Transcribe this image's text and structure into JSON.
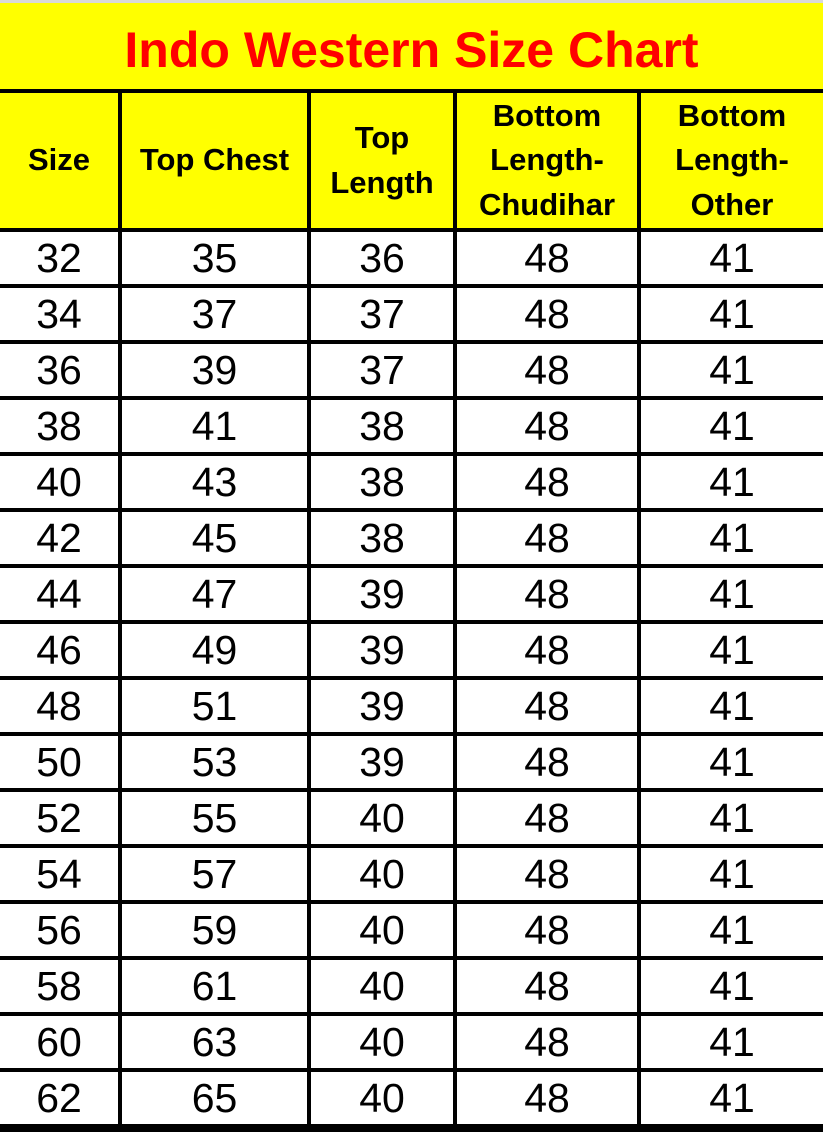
{
  "page": {
    "title": "Indo Western Size Chart"
  },
  "colors": {
    "background_yellow": "#ffff00",
    "title_red": "#ff0000",
    "grid_black": "#000000",
    "top_strip_gray": "#d9d9d9",
    "row_white": "#ffffff"
  },
  "table": {
    "headers": [
      "Size",
      "Top Chest",
      "Top\nLength",
      "Bottom\nLength-\nChudihar",
      "Bottom\nLength-\nOther"
    ],
    "rows": [
      [
        "32",
        "35",
        "36",
        "48",
        "41"
      ],
      [
        "34",
        "37",
        "37",
        "48",
        "41"
      ],
      [
        "36",
        "39",
        "37",
        "48",
        "41"
      ],
      [
        "38",
        "41",
        "38",
        "48",
        "41"
      ],
      [
        "40",
        "43",
        "38",
        "48",
        "41"
      ],
      [
        "42",
        "45",
        "38",
        "48",
        "41"
      ],
      [
        "44",
        "47",
        "39",
        "48",
        "41"
      ],
      [
        "46",
        "49",
        "39",
        "48",
        "41"
      ],
      [
        "48",
        "51",
        "39",
        "48",
        "41"
      ],
      [
        "50",
        "53",
        "39",
        "48",
        "41"
      ],
      [
        "52",
        "55",
        "40",
        "48",
        "41"
      ],
      [
        "54",
        "57",
        "40",
        "48",
        "41"
      ],
      [
        "56",
        "59",
        "40",
        "48",
        "41"
      ],
      [
        "58",
        "61",
        "40",
        "48",
        "41"
      ],
      [
        "60",
        "63",
        "40",
        "48",
        "41"
      ],
      [
        "62",
        "65",
        "40",
        "48",
        "41"
      ]
    ]
  },
  "chart_data": {
    "type": "table",
    "title": "Indo Western Size Chart",
    "columns": [
      "Size",
      "Top Chest",
      "Top Length",
      "Bottom Length-Chudihar",
      "Bottom Length-Other"
    ],
    "rows": [
      [
        32,
        35,
        36,
        48,
        41
      ],
      [
        34,
        37,
        37,
        48,
        41
      ],
      [
        36,
        39,
        37,
        48,
        41
      ],
      [
        38,
        41,
        38,
        48,
        41
      ],
      [
        40,
        43,
        38,
        48,
        41
      ],
      [
        42,
        45,
        38,
        48,
        41
      ],
      [
        44,
        47,
        39,
        48,
        41
      ],
      [
        46,
        49,
        39,
        48,
        41
      ],
      [
        48,
        51,
        39,
        48,
        41
      ],
      [
        50,
        53,
        39,
        48,
        41
      ],
      [
        52,
        55,
        40,
        48,
        41
      ],
      [
        54,
        57,
        40,
        48,
        41
      ],
      [
        56,
        59,
        40,
        48,
        41
      ],
      [
        58,
        61,
        40,
        48,
        41
      ],
      [
        60,
        63,
        40,
        48,
        41
      ],
      [
        62,
        65,
        40,
        48,
        41
      ]
    ],
    "layout_hints": {
      "title_color": "#ff0000",
      "header_background": "#ffff00",
      "grid": "on"
    }
  }
}
